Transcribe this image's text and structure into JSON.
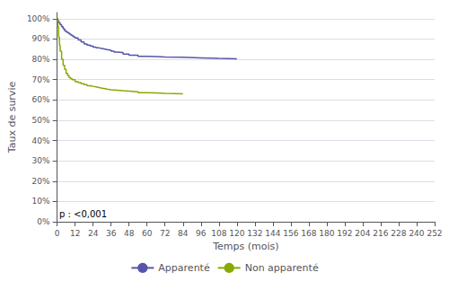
{
  "chart_data": {
    "type": "step",
    "xlabel": "Temps (mois)",
    "ylabel": "Taux de survie",
    "annotation": "p : <0,001",
    "xlim": [
      0,
      252
    ],
    "ylim": [
      0,
      1.03
    ],
    "xticks": [
      0,
      12,
      24,
      36,
      48,
      60,
      72,
      84,
      96,
      108,
      120,
      132,
      144,
      156,
      168,
      180,
      192,
      204,
      216,
      228,
      240,
      252
    ],
    "yticks": [
      {
        "value": 0,
        "label": "0%"
      },
      {
        "value": 0.1,
        "label": "10%"
      },
      {
        "value": 0.2,
        "label": "20%"
      },
      {
        "value": 0.3,
        "label": "30%"
      },
      {
        "value": 0.4,
        "label": "40%"
      },
      {
        "value": 0.5,
        "label": "50%"
      },
      {
        "value": 0.6,
        "label": "60%"
      },
      {
        "value": 0.7,
        "label": "70%"
      },
      {
        "value": 0.8,
        "label": "80%"
      },
      {
        "value": 0.9,
        "label": "90%"
      },
      {
        "value": 1.0,
        "label": "100%"
      }
    ],
    "grid": true,
    "legend": "bottom",
    "series": [
      {
        "name": "Apparenté",
        "color": "#5555aa",
        "x": [
          0,
          0.5,
          1,
          2,
          3,
          4,
          5,
          6,
          7,
          8,
          9,
          10,
          11,
          12,
          14,
          16,
          18,
          20,
          22,
          24,
          26,
          28,
          30,
          32,
          34,
          36,
          38,
          40,
          44,
          48,
          54,
          60,
          66,
          72,
          84,
          96,
          108,
          120
        ],
        "values": [
          1.0,
          0.99,
          0.98,
          0.97,
          0.96,
          0.95,
          0.94,
          0.935,
          0.93,
          0.925,
          0.92,
          0.915,
          0.91,
          0.905,
          0.895,
          0.885,
          0.875,
          0.87,
          0.865,
          0.86,
          0.856,
          0.853,
          0.85,
          0.847,
          0.844,
          0.84,
          0.836,
          0.833,
          0.825,
          0.82,
          0.815,
          0.813,
          0.811,
          0.81,
          0.807,
          0.804,
          0.802,
          0.8
        ]
      },
      {
        "name": "Non apparenté",
        "color": "#88aa00",
        "x": [
          0,
          0.5,
          1,
          1.5,
          2,
          3,
          4,
          5,
          6,
          7,
          8,
          9,
          10,
          12,
          14,
          16,
          18,
          20,
          22,
          24,
          26,
          28,
          30,
          32,
          34,
          36,
          40,
          44,
          48,
          54,
          60,
          66,
          72,
          84
        ],
        "values": [
          1.0,
          0.96,
          0.91,
          0.87,
          0.84,
          0.8,
          0.77,
          0.75,
          0.73,
          0.72,
          0.71,
          0.705,
          0.7,
          0.69,
          0.685,
          0.68,
          0.675,
          0.67,
          0.667,
          0.664,
          0.661,
          0.658,
          0.655,
          0.652,
          0.65,
          0.648,
          0.645,
          0.643,
          0.64,
          0.636,
          0.634,
          0.632,
          0.63,
          0.627
        ]
      }
    ]
  }
}
